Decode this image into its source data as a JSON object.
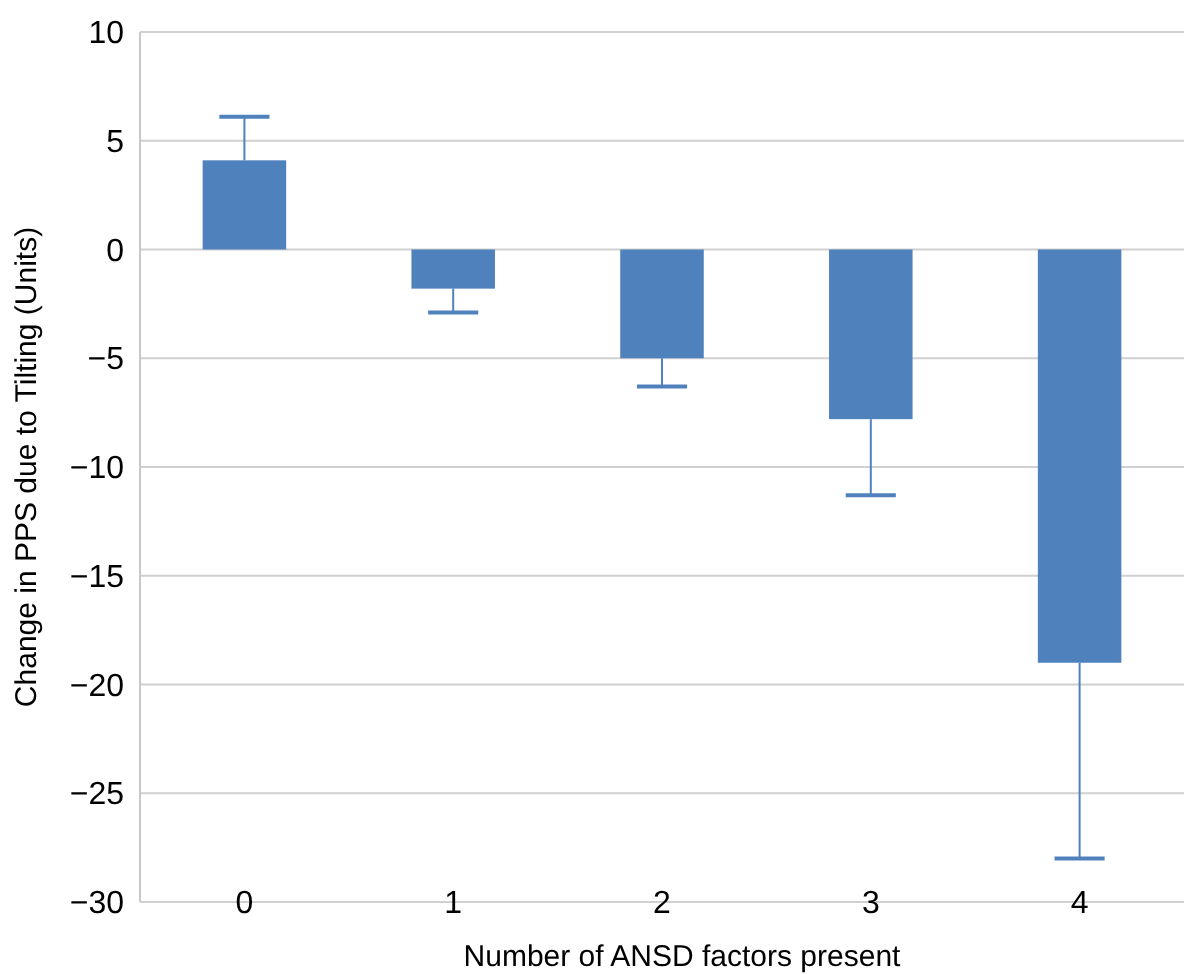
{
  "chart_data": {
    "type": "bar",
    "xlabel": "Number of ANSD factors present",
    "ylabel": "Change in PPS due to Tilting (Units)",
    "categories": [
      "0",
      "1",
      "2",
      "3",
      "4"
    ],
    "values": [
      4.1,
      -1.8,
      -5.0,
      -7.8,
      -19.0
    ],
    "errors": [
      [
        4.1,
        6.1
      ],
      [
        -2.9,
        -1.8
      ],
      [
        -6.3,
        -5.0
      ],
      [
        -11.3,
        -7.8
      ],
      [
        -28.0,
        -19.0
      ]
    ],
    "color": "#4f81bd",
    "ylim": [
      -30,
      10
    ],
    "yticks": [
      {
        "value": 10,
        "label": "10"
      },
      {
        "value": 5,
        "label": "5"
      },
      {
        "value": 0,
        "label": "0"
      },
      {
        "value": -5,
        "label": "−5"
      },
      {
        "value": -10,
        "label": "−10"
      },
      {
        "value": -15,
        "label": "−15"
      },
      {
        "value": -20,
        "label": "−20"
      },
      {
        "value": -25,
        "label": "−25"
      },
      {
        "value": -30,
        "label": "−30"
      }
    ],
    "grid": "y"
  }
}
